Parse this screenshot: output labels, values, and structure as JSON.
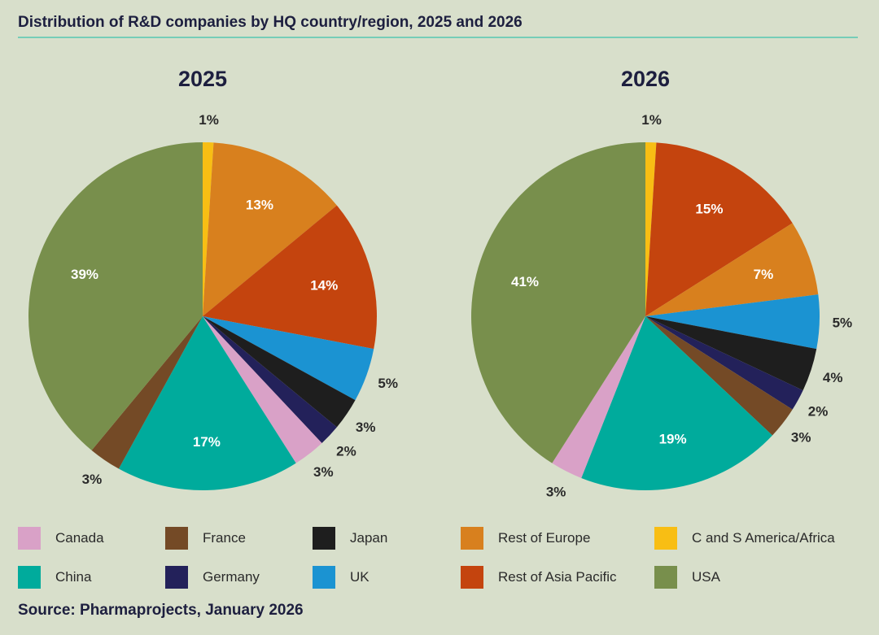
{
  "title": "Distribution of R&D companies by HQ country/region, 2025 and 2026",
  "source": "Source: Pharmaprojects, January 2026",
  "legend": [
    {
      "label": "Canada",
      "color": "#d9a1c7"
    },
    {
      "label": "France",
      "color": "#744a26"
    },
    {
      "label": "Japan",
      "color": "#1e1e1e"
    },
    {
      "label": "Rest of Europe",
      "color": "#d8801e"
    },
    {
      "label": "C and S America/Africa",
      "color": "#f8be14"
    },
    {
      "label": "China",
      "color": "#00ab9c"
    },
    {
      "label": "Germany",
      "color": "#23215a"
    },
    {
      "label": "UK",
      "color": "#1b93d2"
    },
    {
      "label": "Rest of Asia Pacific",
      "color": "#c4440e"
    },
    {
      "label": "USA",
      "color": "#788f4c"
    }
  ],
  "chart_data": [
    {
      "type": "pie",
      "title": "2025",
      "unit": "%",
      "slices": [
        {
          "name": "C and S America/Africa",
          "value": 1,
          "label": "1%"
        },
        {
          "name": "Rest of Europe",
          "value": 13,
          "label": "13%"
        },
        {
          "name": "Rest of Asia Pacific",
          "value": 14,
          "label": "14%"
        },
        {
          "name": "UK",
          "value": 5,
          "label": "5%"
        },
        {
          "name": "Japan",
          "value": 3,
          "label": "3%"
        },
        {
          "name": "Germany",
          "value": 2,
          "label": "2%"
        },
        {
          "name": "Canada",
          "value": 3,
          "label": "3%"
        },
        {
          "name": "China",
          "value": 17,
          "label": "17%"
        },
        {
          "name": "France",
          "value": 3,
          "label": "3%"
        },
        {
          "name": "USA",
          "value": 39,
          "label": "39%"
        }
      ]
    },
    {
      "type": "pie",
      "title": "2026",
      "unit": "%",
      "slices": [
        {
          "name": "C and S America/Africa",
          "value": 1,
          "label": "1%"
        },
        {
          "name": "Rest of Asia Pacific",
          "value": 15,
          "label": "15%"
        },
        {
          "name": "Rest of Europe",
          "value": 7,
          "label": "7%"
        },
        {
          "name": "UK",
          "value": 5,
          "label": "5%"
        },
        {
          "name": "Japan",
          "value": 4,
          "label": "4%"
        },
        {
          "name": "Germany",
          "value": 2,
          "label": "2%"
        },
        {
          "name": "France",
          "value": 3,
          "label": "3%"
        },
        {
          "name": "China",
          "value": 19,
          "label": "19%"
        },
        {
          "name": "Canada",
          "value": 3,
          "label": "3%"
        },
        {
          "name": "USA",
          "value": 41,
          "label": "41%"
        }
      ]
    }
  ]
}
